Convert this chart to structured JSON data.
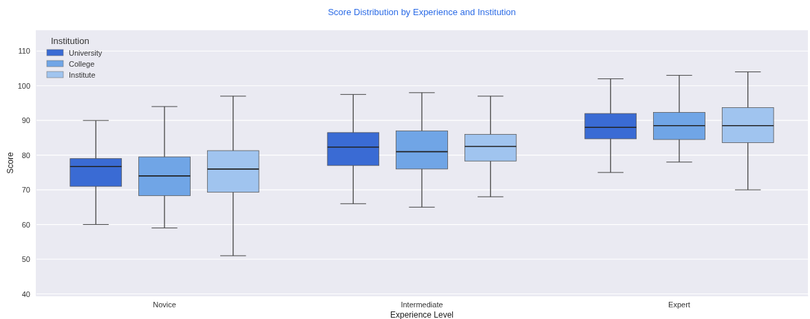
{
  "chart_data": {
    "type": "box",
    "title": "Score Distribution by Experience and Institution",
    "xlabel": "Experience Level",
    "ylabel": "Score",
    "legend_title": "Institution",
    "legend": "top left",
    "grid": "y",
    "categories": [
      "Novice",
      "Intermediate",
      "Expert"
    ],
    "ylim": [
      39.5,
      116
    ],
    "yticks": [
      40,
      50,
      60,
      70,
      80,
      90,
      100,
      110
    ],
    "series": [
      {
        "name": "University",
        "color": "#3a6bd4",
        "boxes": [
          {
            "low": 60,
            "q1": 71,
            "median": 76.7,
            "q3": 79,
            "high": 90
          },
          {
            "low": 66,
            "q1": 77,
            "median": 82.3,
            "q3": 86.5,
            "high": 97.5
          },
          {
            "low": 75,
            "q1": 84.7,
            "median": 88,
            "q3": 92,
            "high": 102
          }
        ]
      },
      {
        "name": "College",
        "color": "#70a5e6",
        "boxes": [
          {
            "low": 59,
            "q1": 68.3,
            "median": 74,
            "q3": 79.5,
            "high": 94
          },
          {
            "low": 65,
            "q1": 76,
            "median": 81,
            "q3": 87,
            "high": 98
          },
          {
            "low": 78,
            "q1": 84.5,
            "median": 88.5,
            "q3": 92.3,
            "high": 103
          }
        ]
      },
      {
        "name": "Institute",
        "color": "#a0c4ef",
        "boxes": [
          {
            "low": 51,
            "q1": 69.3,
            "median": 76,
            "q3": 81.3,
            "high": 97
          },
          {
            "low": 68,
            "q1": 78.3,
            "median": 82.5,
            "q3": 86,
            "high": 97
          },
          {
            "low": 70,
            "q1": 83.6,
            "median": 88.5,
            "q3": 93.7,
            "high": 104
          }
        ]
      }
    ]
  }
}
